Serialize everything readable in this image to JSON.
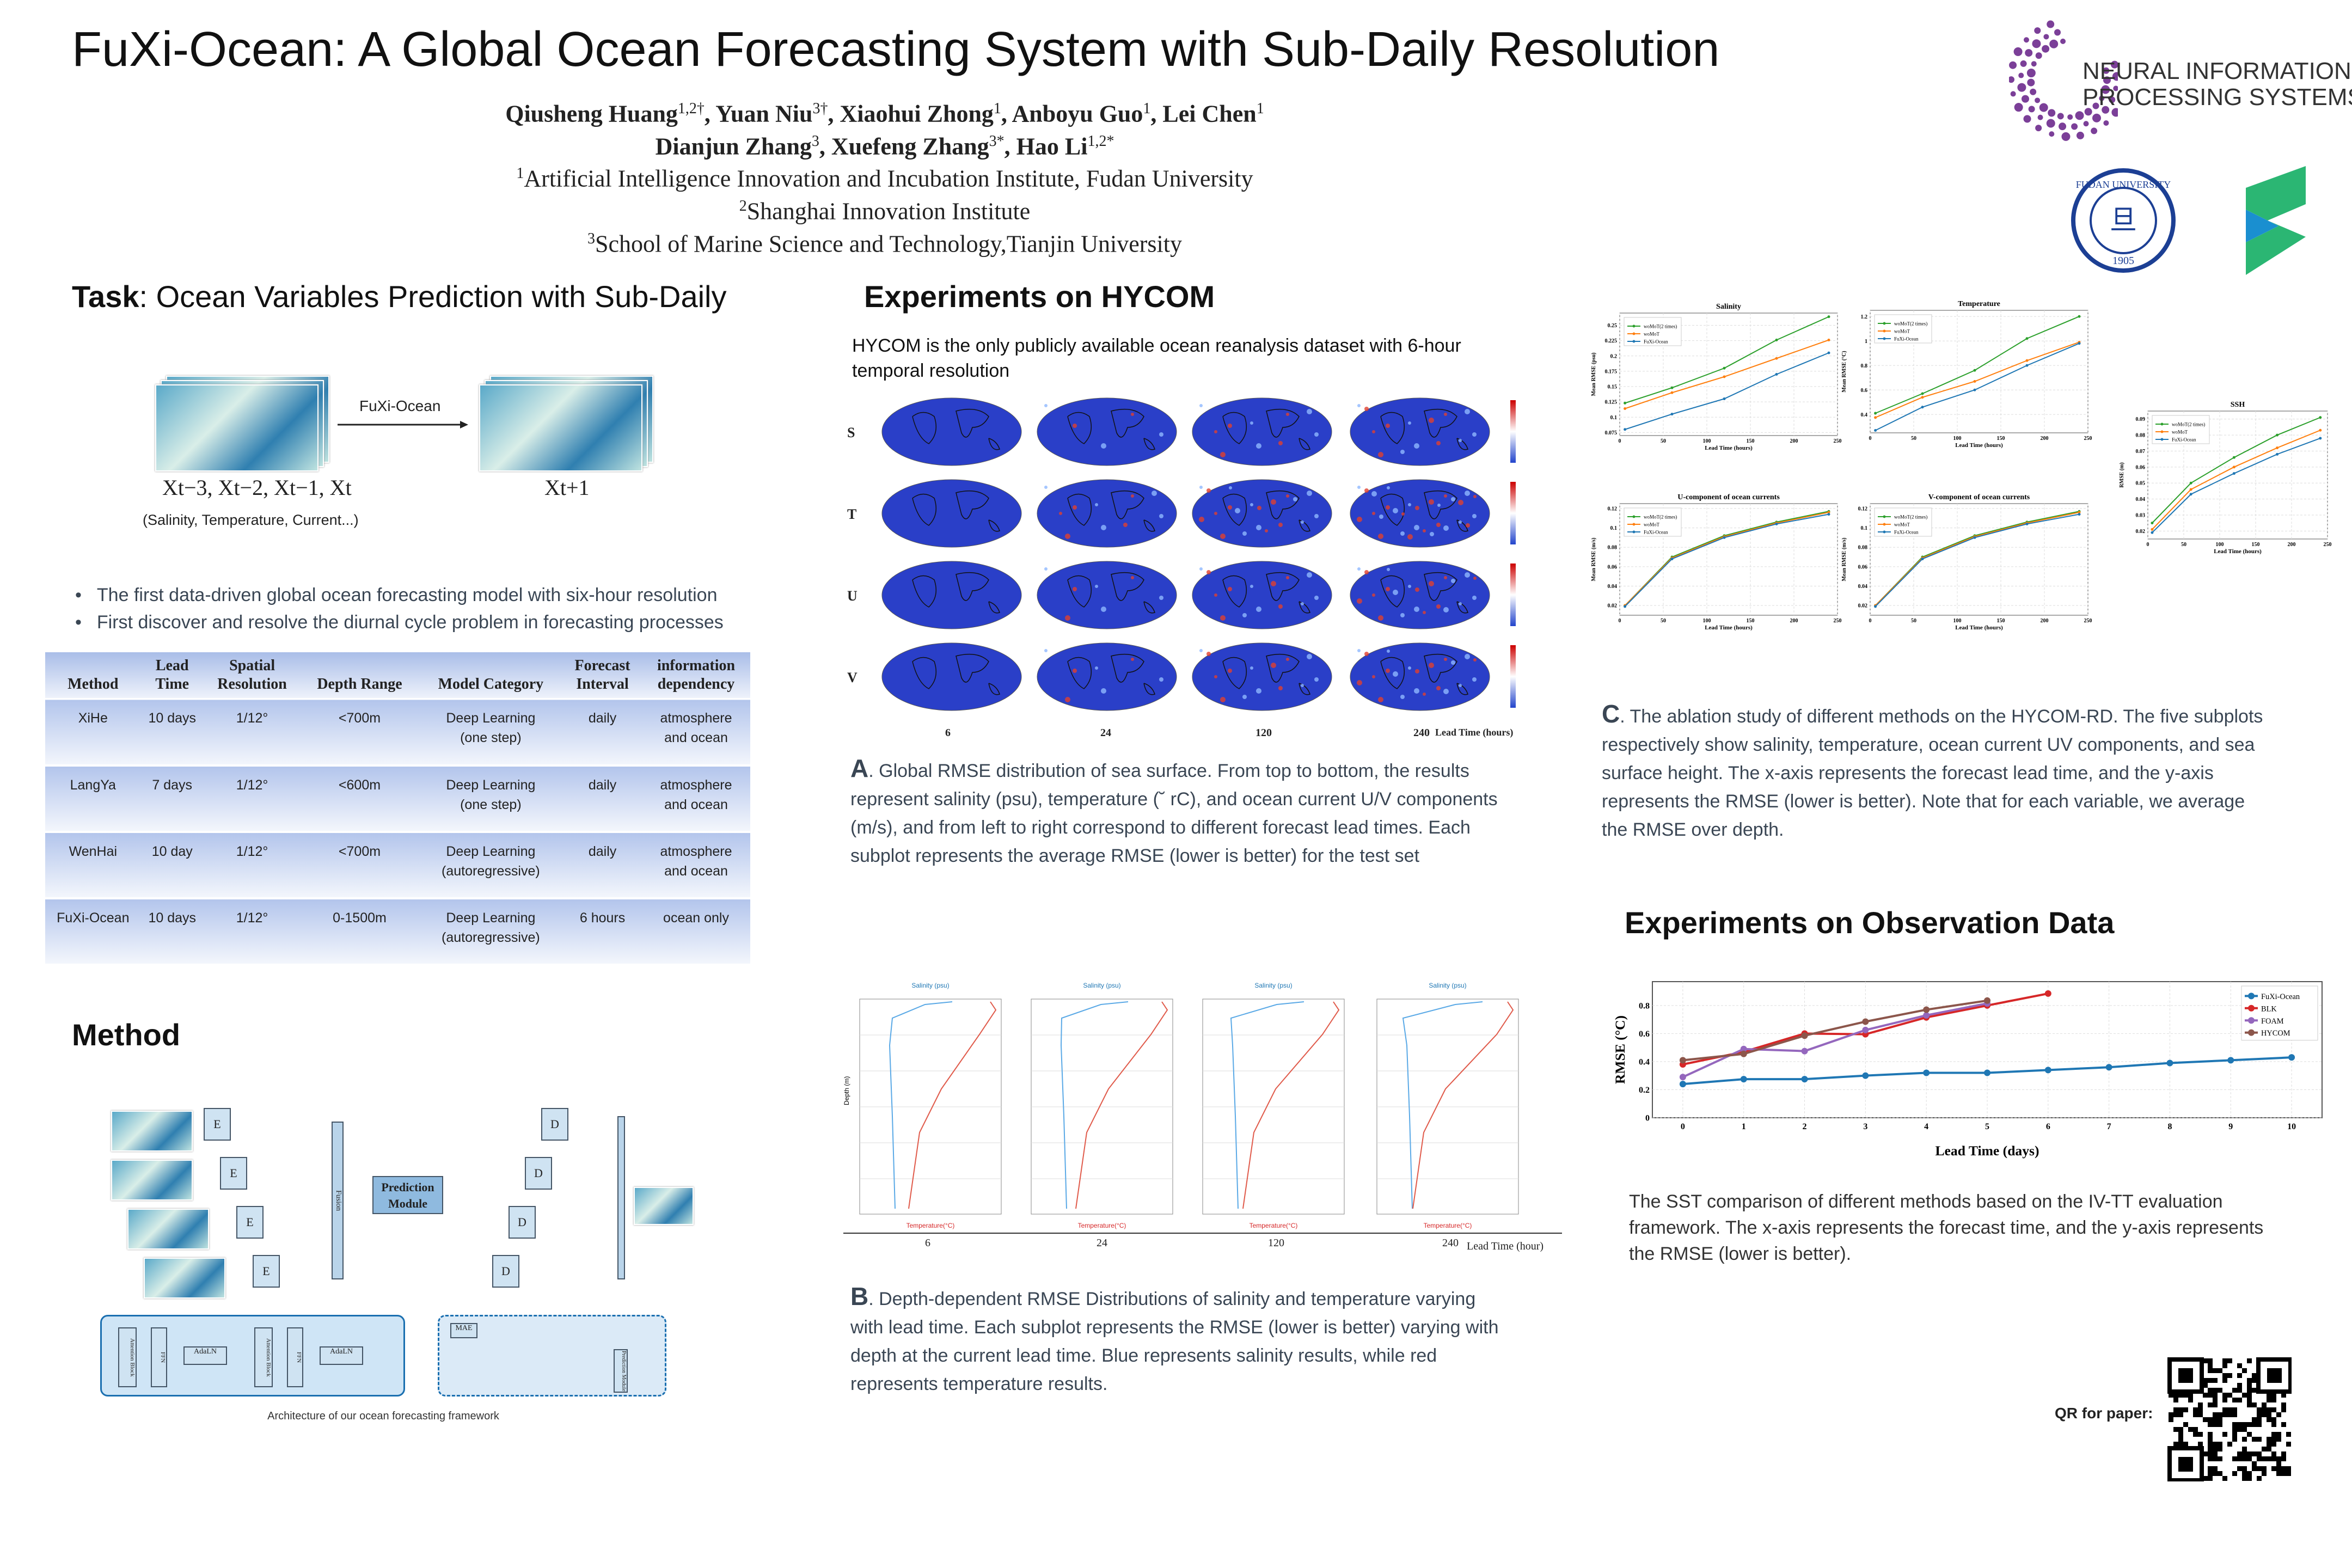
{
  "title": "FuXi-Ocean: A Global Ocean Forecasting System with Sub-Daily Resolution",
  "authors_line1": [
    {
      "name": "Qiusheng Huang",
      "sup": "1,2†"
    },
    {
      "name": "Yuan Niu",
      "sup": "3†"
    },
    {
      "name": "Xiaohui Zhong",
      "sup": "1"
    },
    {
      "name": "Anboyu Guo",
      "sup": "1"
    },
    {
      "name": "Lei Chen",
      "sup": "1"
    }
  ],
  "authors_line2": [
    {
      "name": "Dianjun Zhang",
      "sup": "3"
    },
    {
      "name": "Xuefeng Zhang",
      "sup": "3*"
    },
    {
      "name": "Hao Li",
      "sup": "1,2*"
    }
  ],
  "affiliations": [
    {
      "sup": "1",
      "text": "Artificial Intelligence Innovation and Incubation Institute, Fudan University"
    },
    {
      "sup": "2",
      "text": "Shanghai Innovation Institute"
    },
    {
      "sup": "3",
      "text": "School of Marine Science and Technology,Tianjin University"
    }
  ],
  "logos": {
    "neurips_line1": "NEURAL INFORMATION",
    "neurips_line2": "PROCESSING SYSTEMS",
    "fudan": "FUDAN UNIVERSITY 1905",
    "accent": "#7b3f98",
    "green": "#2bb673"
  },
  "task": {
    "heading_bold": "Task",
    "heading_rest": ": Ocean Variables Prediction with Sub-Daily",
    "model_label": "FuXi-Ocean",
    "input_formula": "Xt−3, Xt−2, Xt−1, Xt",
    "output_formula": "Xt+1",
    "input_note": "(Salinity, Temperature, Current...)",
    "bullets": [
      "The first data-driven global ocean forecasting model with six-hour resolution",
      "First discover and resolve the diurnal cycle problem in forecasting processes"
    ]
  },
  "table": {
    "headers": [
      [
        "",
        "Method"
      ],
      [
        "Lead",
        "Time"
      ],
      [
        "Spatial",
        "Resolution"
      ],
      [
        "",
        "Depth Range"
      ],
      [
        "",
        "Model Category"
      ],
      [
        "Forecast",
        "Interval"
      ],
      [
        "information",
        "dependency"
      ]
    ],
    "rows": [
      [
        "XiHe",
        "10 days",
        "1/12°",
        "<700m",
        "Deep Learning",
        "(one step)",
        "daily",
        "atmosphere",
        "and ocean"
      ],
      [
        "LangYa",
        "7 days",
        "1/12°",
        "<600m",
        "Deep Learning",
        "(one step)",
        "daily",
        "atmosphere",
        "and ocean"
      ],
      [
        "WenHai",
        "10 day",
        "1/12°",
        "<700m",
        "Deep Learning",
        "(autoregressive)",
        "daily",
        "atmosphere",
        "and ocean"
      ],
      [
        "FuXi-Ocean",
        "10 days",
        "1/12°",
        "0-1500m",
        "Deep Learning",
        "(autoregressive)",
        "6 hours",
        "ocean only",
        ""
      ]
    ]
  },
  "method": {
    "heading": "Method",
    "prediction_module": "Prediction Module",
    "encoder": "E",
    "decoder": "D",
    "fusion": "Fusion",
    "block_labels": [
      "Attention Block",
      "FFN",
      "AdaLN",
      "Attention Block",
      "FFN",
      "AdaLN",
      "MAE",
      "Prediction Module"
    ],
    "caption": "Architecture of our ocean forecasting framework"
  },
  "hycom": {
    "heading": "Experiments on HYCOM",
    "intro": "HYCOM is the only publicly available ocean reanalysis dataset with 6-hour temporal resolution",
    "rows": [
      "S",
      "T",
      "U",
      "V"
    ],
    "leads": [
      "6",
      "24",
      "120",
      "240"
    ],
    "lead_axis": "Lead Time (hours)",
    "caption_letter": "A",
    "caption": ". Global RMSE distribution of sea surface. From top to bottom, the results represent salinity (psu), temperature (˘ rC), and ocean current U/V components (m/s), and from left to right correspond to different forecast lead times. Each subplot represents the average RMSE (lower is better) for the test set",
    "depth_leads": [
      "6",
      "24",
      "120",
      "240"
    ],
    "depth_axis": "Lead Time (hour)",
    "depth_top_label": "Salinity (psu)",
    "depth_bottom_label": "Temperature(°C)",
    "depth_ylabel": "Depth (m)",
    "caption_b_letter": "B",
    "caption_b": ". Depth-dependent RMSE Distributions of salinity and temperature varying with lead time. Each subplot represents the RMSE (lower is better) varying with depth at the current lead time. Blue represents salinity results, while red represents temperature results."
  },
  "ablation": {
    "caption_letter": "C",
    "caption": ". The ablation study of different methods on the HYCOM-RD. The five subplots respectively show salinity, temperature, ocean current UV components, and sea surface height. The x-axis represents the forecast lead time, and the y-axis represents the RMSE (lower is better). Note that for each variable, we average the RMSE over depth."
  },
  "observation": {
    "heading": "Experiments on Observation Data",
    "caption": "The SST comparison of different methods based on the IV-TT evaluation framework. The x-axis represents the forecast time, and the y-axis represents the RMSE (lower is better)."
  },
  "qr": {
    "label": "QR for paper:"
  },
  "chart_data": [
    {
      "type": "line",
      "title": "",
      "xlabel": "Lead Time (days)",
      "ylabel": "RMSE (°C)",
      "xlim": [
        -0.5,
        10.5
      ],
      "ylim": [
        0,
        0.97
      ],
      "xticks": [
        0,
        1,
        2,
        3,
        4,
        5,
        6,
        7,
        8,
        9,
        10
      ],
      "yticks": [
        0.0,
        0.2,
        0.4,
        0.6,
        0.8
      ],
      "grid": true,
      "legend": "top-right",
      "series": [
        {
          "name": "FuXi-Ocean",
          "color": "#1f77b4",
          "x": [
            0,
            1,
            2,
            3,
            4,
            5,
            6,
            7,
            8,
            9,
            10
          ],
          "values": [
            0.24,
            0.275,
            0.275,
            0.3,
            0.32,
            0.32,
            0.34,
            0.36,
            0.39,
            0.41,
            0.43
          ]
        },
        {
          "name": "BLK",
          "color": "#d62728",
          "x": [
            0,
            1,
            2,
            3,
            4,
            5,
            6
          ],
          "values": [
            0.38,
            0.47,
            0.6,
            0.595,
            0.715,
            0.8,
            0.885
          ]
        },
        {
          "name": "FOAM",
          "color": "#9467bd",
          "x": [
            0,
            1,
            2,
            3,
            4,
            5
          ],
          "values": [
            0.29,
            0.49,
            0.475,
            0.625,
            0.73,
            0.815
          ]
        },
        {
          "name": "HYCOM",
          "color": "#8c564b",
          "x": [
            0,
            1,
            2,
            3,
            4,
            5
          ],
          "values": [
            0.41,
            0.455,
            0.585,
            0.685,
            0.77,
            0.835
          ]
        }
      ]
    },
    {
      "type": "line",
      "title": "Salinity",
      "xlabel": "Lead Time (hours)",
      "ylabel": "Mean RMSE (psu)",
      "xlim": [
        0,
        250
      ],
      "ylim": [
        0.07,
        0.27
      ],
      "yticks": [
        0.075,
        0.1,
        0.125,
        0.15,
        0.175,
        0.2,
        0.225,
        0.25
      ],
      "xticks": [
        0,
        50,
        100,
        150,
        200,
        250
      ],
      "legend": "top-left",
      "x": [
        6,
        60,
        120,
        180,
        240
      ],
      "series": [
        {
          "name": "woMoT(2 times)",
          "color": "#2ca02c",
          "values": [
            0.123,
            0.148,
            0.18,
            0.226,
            0.264
          ]
        },
        {
          "name": "woMoT",
          "color": "#ff7f0e",
          "values": [
            0.114,
            0.14,
            0.166,
            0.196,
            0.226
          ]
        },
        {
          "name": "FuXi-Ocean",
          "color": "#1f77b4",
          "values": [
            0.08,
            0.105,
            0.13,
            0.17,
            0.205
          ]
        }
      ]
    },
    {
      "type": "line",
      "title": "Temperature",
      "xlabel": "Lead Time (hours)",
      "ylabel": "Mean RMSE (°C)",
      "xlim": [
        0,
        250
      ],
      "ylim": [
        0.25,
        1.25
      ],
      "yticks": [
        0.4,
        0.6,
        0.8,
        1.0,
        1.2
      ],
      "xticks": [
        0,
        50,
        100,
        150,
        200,
        250
      ],
      "legend": "top-left",
      "x": [
        6,
        60,
        120,
        180,
        240
      ],
      "series": [
        {
          "name": "woMoT(2 times)",
          "color": "#2ca02c",
          "values": [
            0.41,
            0.57,
            0.76,
            1.02,
            1.2
          ]
        },
        {
          "name": "woMoT",
          "color": "#ff7f0e",
          "values": [
            0.375,
            0.54,
            0.67,
            0.84,
            0.99
          ]
        },
        {
          "name": "FuXi-Ocean",
          "color": "#1f77b4",
          "values": [
            0.27,
            0.46,
            0.6,
            0.8,
            0.98
          ]
        }
      ]
    },
    {
      "type": "line",
      "title": "SSH",
      "xlabel": "Lead Time (hours)",
      "ylabel": "RMSE (m)",
      "xlim": [
        0,
        250
      ],
      "ylim": [
        0.015,
        0.095
      ],
      "yticks": [
        0.02,
        0.03,
        0.04,
        0.05,
        0.06,
        0.07,
        0.08,
        0.09
      ],
      "xticks": [
        0,
        50,
        100,
        150,
        200,
        250
      ],
      "legend": "top-left",
      "x": [
        6,
        60,
        120,
        180,
        240
      ],
      "series": [
        {
          "name": "woMoT(2 times)",
          "color": "#2ca02c",
          "values": [
            0.025,
            0.05,
            0.066,
            0.08,
            0.091
          ]
        },
        {
          "name": "woMoT",
          "color": "#ff7f0e",
          "values": [
            0.021,
            0.046,
            0.06,
            0.072,
            0.083
          ]
        },
        {
          "name": "FuXi-Ocean",
          "color": "#1f77b4",
          "values": [
            0.019,
            0.043,
            0.056,
            0.068,
            0.078
          ]
        }
      ]
    },
    {
      "type": "line",
      "title": "U-component of ocean currents",
      "xlabel": "Lead Time (hours)",
      "ylabel": "Mean RMSE (m/s)",
      "xlim": [
        0,
        250
      ],
      "ylim": [
        0.01,
        0.125
      ],
      "yticks": [
        0.02,
        0.04,
        0.06,
        0.08,
        0.1,
        0.12
      ],
      "xticks": [
        0,
        50,
        100,
        150,
        200,
        250
      ],
      "legend": "top-left",
      "x": [
        6,
        60,
        120,
        180,
        240
      ],
      "series": [
        {
          "name": "woMoT(2 times)",
          "color": "#2ca02c",
          "values": [
            0.02,
            0.07,
            0.092,
            0.106,
            0.117
          ]
        },
        {
          "name": "woMoT",
          "color": "#ff7f0e",
          "values": [
            0.02,
            0.069,
            0.091,
            0.105,
            0.116
          ]
        },
        {
          "name": "FuXi-Ocean",
          "color": "#1f77b4",
          "values": [
            0.019,
            0.068,
            0.09,
            0.104,
            0.114
          ]
        }
      ]
    },
    {
      "type": "line",
      "title": "V-component of ocean currents",
      "xlabel": "Lead Time (hours)",
      "ylabel": "Mean RMSE (m/s)",
      "xlim": [
        0,
        250
      ],
      "ylim": [
        0.01,
        0.125
      ],
      "yticks": [
        0.02,
        0.04,
        0.06,
        0.08,
        0.1,
        0.12
      ],
      "xticks": [
        0,
        50,
        100,
        150,
        200,
        250
      ],
      "legend": "top-left",
      "x": [
        6,
        60,
        120,
        180,
        240
      ],
      "series": [
        {
          "name": "woMoT(2 times)",
          "color": "#2ca02c",
          "values": [
            0.02,
            0.07,
            0.092,
            0.106,
            0.117
          ]
        },
        {
          "name": "woMoT",
          "color": "#ff7f0e",
          "values": [
            0.02,
            0.069,
            0.091,
            0.105,
            0.116
          ]
        },
        {
          "name": "FuXi-Ocean",
          "color": "#1f77b4",
          "values": [
            0.019,
            0.068,
            0.09,
            0.104,
            0.114
          ]
        }
      ]
    }
  ]
}
